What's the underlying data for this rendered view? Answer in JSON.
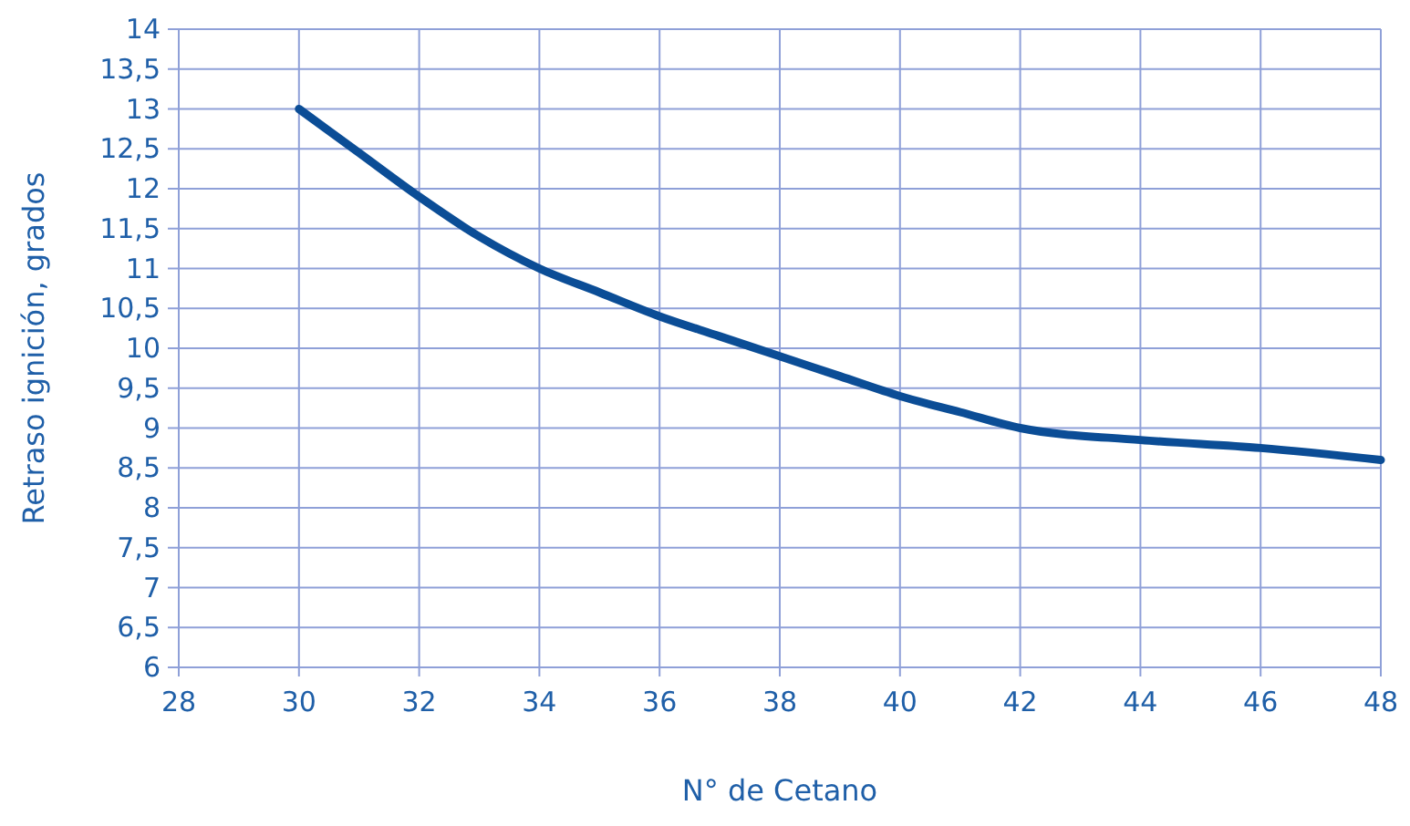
{
  "chart_data": {
    "type": "line",
    "xlabel": "N° de Cetano",
    "ylabel": "Retraso ignición, grados",
    "xlim": [
      28,
      48
    ],
    "xticks": [
      28,
      30,
      32,
      34,
      36,
      38,
      40,
      42,
      44,
      46,
      48
    ],
    "ylim": [
      6,
      14
    ],
    "yticks": [
      6,
      {
        "value": 6.5,
        "label": "6,5"
      },
      7,
      {
        "value": 7.5,
        "label": "7,5"
      },
      8,
      {
        "value": 8.5,
        "label": "8,5"
      },
      9,
      {
        "value": 9.5,
        "label": "9,5"
      },
      10,
      {
        "value": 10.5,
        "label": "10,5"
      },
      11,
      {
        "value": 11.5,
        "label": "11,5"
      },
      12,
      {
        "value": 12.5,
        "label": "12,5"
      },
      13,
      {
        "value": 13.5,
        "label": "13,5"
      },
      14
    ],
    "grid": true,
    "marker": "none",
    "line_style": "solid",
    "series": [
      {
        "color": "#0b4d96",
        "x": [
          30,
          31,
          32,
          33,
          34,
          35,
          36,
          37,
          38,
          39,
          40,
          41,
          42,
          44,
          46,
          48
        ],
        "values": [
          13,
          12.45,
          11.9,
          11.4,
          11.0,
          10.7,
          10.4,
          10.15,
          9.9,
          9.65,
          9.4,
          9.2,
          9.0,
          8.85,
          8.75,
          8.6
        ]
      }
    ]
  }
}
